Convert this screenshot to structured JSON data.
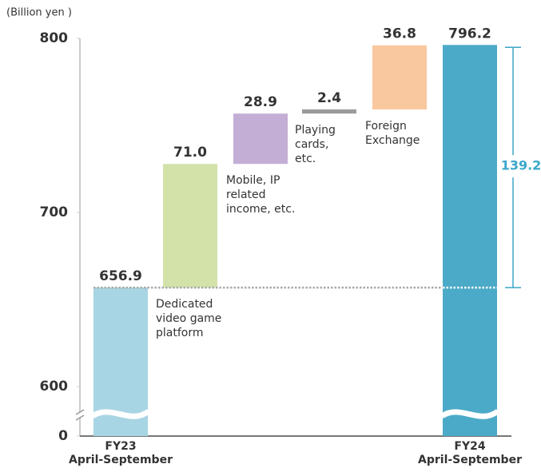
{
  "chart_data": {
    "type": "waterfall",
    "unit_label": "(Billion yen )",
    "categories": [
      "FY23\nApril-September",
      "Dedicated\nvideo game\nplatform",
      "Mobile, IP\nrelated\nincome, etc.",
      "Playing\ncards,\netc.",
      "Foreign\nExchange",
      "FY24\nApril-September"
    ],
    "values": [
      656.9,
      71.0,
      28.9,
      2.4,
      36.8,
      796.2
    ],
    "value_labels": [
      "656.9",
      "71.0",
      "28.9",
      "2.4",
      "36.8",
      "796.2"
    ],
    "bar_kinds": [
      "total",
      "delta",
      "delta",
      "delta",
      "delta",
      "total"
    ],
    "colors": [
      "#a8d5e3",
      "#d3e2a9",
      "#c3aed5",
      "#9b9b9b",
      "#f9c89f",
      "#4baac7"
    ],
    "difference": 139.2,
    "difference_color": "#3aa7c9",
    "ylim": [
      0,
      800
    ],
    "axis_break": [
      0,
      590
    ],
    "yticks": [
      0,
      600,
      700,
      800
    ]
  }
}
